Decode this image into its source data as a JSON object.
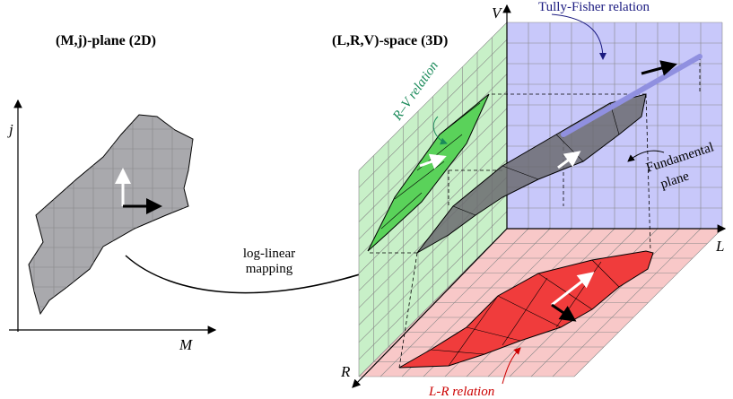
{
  "headings": {
    "left": "(M,j)-plane (2D)",
    "right": "(L,R,V)-space (3D)"
  },
  "axes_2d": {
    "y": "j",
    "x": "M"
  },
  "axes_3d": {
    "v": "V",
    "l": "L",
    "r": "R"
  },
  "mapping": {
    "lines": [
      "log-linear",
      "mapping"
    ]
  },
  "labels": {
    "tully_fisher": "Tully-Fisher relation",
    "rv": "R–V relation",
    "fundamental": [
      "Fundamental",
      "plane"
    ],
    "lr": "L-R relation"
  }
}
